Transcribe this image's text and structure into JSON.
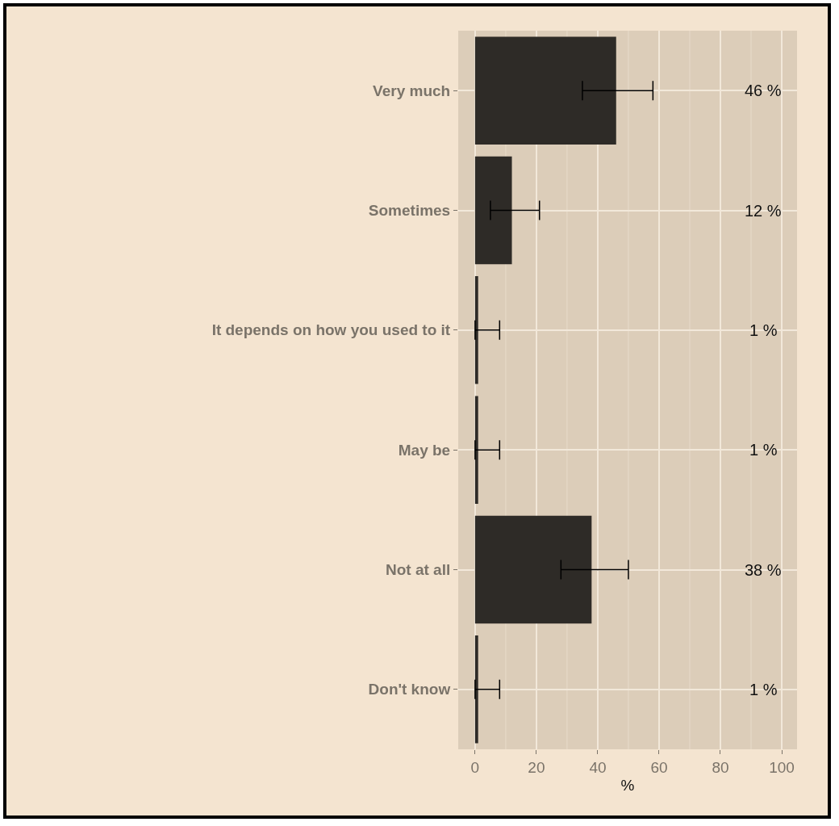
{
  "chart_data": {
    "type": "bar",
    "orientation": "horizontal",
    "xlabel": "%",
    "categories": [
      "Very much",
      "Sometimes",
      "It depends on how you used to it",
      "May be",
      "Not at all",
      "Don't know"
    ],
    "values": [
      46,
      12,
      1,
      1,
      38,
      1
    ],
    "value_labels": [
      "46 %",
      "12 %",
      "1 %",
      "1 %",
      "38 %",
      "1 %"
    ],
    "errors": [
      [
        35,
        58
      ],
      [
        5,
        21
      ],
      [
        0,
        8
      ],
      [
        0,
        8
      ],
      [
        28,
        50
      ],
      [
        0,
        8
      ]
    ],
    "color": "#2e2b27",
    "xlim": [
      -5.5,
      105
    ],
    "xticks": [
      0,
      20,
      40,
      60,
      80,
      100
    ],
    "grid": true
  }
}
